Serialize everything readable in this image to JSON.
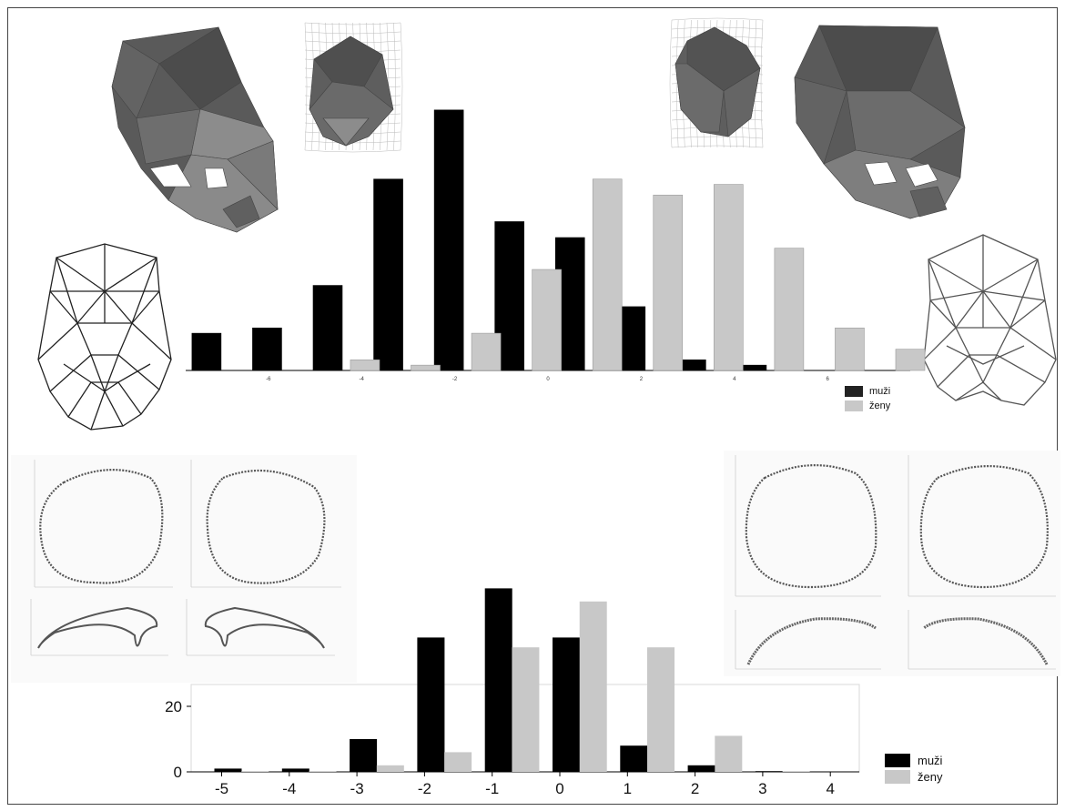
{
  "legend": {
    "men": "muži",
    "women": "ženy"
  },
  "colors": {
    "men": "#000000",
    "women": "#c8c8c8",
    "women_top": "#b4b4b4",
    "skull_dark": "#555555",
    "skull_light": "#8a8a8a"
  },
  "chart_data": [
    {
      "type": "bar",
      "x_ticks": [
        -6,
        -4,
        -2,
        0,
        2,
        4,
        6
      ],
      "grid": false,
      "legend_position": "bottom-right",
      "series": [
        {
          "name": "muži",
          "x": [
            -7.6,
            -6.3,
            -5.0,
            -3.7,
            -2.4,
            -1.1,
            0.2,
            1.5,
            2.8,
            4.1
          ],
          "values": [
            7,
            8,
            16,
            36,
            49,
            28,
            25,
            12,
            2,
            1
          ]
        },
        {
          "name": "ženy",
          "x": [
            -4.2,
            -2.9,
            -1.6,
            -0.3,
            1.0,
            2.3,
            3.6,
            4.9,
            6.2,
            7.5
          ],
          "values": [
            2,
            1,
            7,
            19,
            36,
            33,
            35,
            23,
            8,
            4
          ]
        }
      ]
    },
    {
      "type": "bar",
      "x_ticks": [
        -5,
        -4,
        -3,
        -2,
        -1,
        0,
        1,
        2,
        3,
        4
      ],
      "y_ticks": [
        0,
        20
      ],
      "grid": false,
      "legend_position": "bottom-right",
      "series": [
        {
          "name": "muži",
          "x": [
            -5,
            -4,
            -3,
            -2,
            -1,
            0,
            1,
            2,
            3
          ],
          "values": [
            1,
            1,
            10,
            41,
            56,
            41,
            8,
            2,
            0
          ]
        },
        {
          "name": "ženy",
          "x": [
            -4.6,
            -3.6,
            -2.6,
            -1.6,
            -0.6,
            0.4,
            1.4,
            2.4,
            3.4
          ],
          "values": [
            0,
            0,
            2,
            6,
            38,
            52,
            38,
            11,
            0
          ]
        }
      ]
    }
  ]
}
